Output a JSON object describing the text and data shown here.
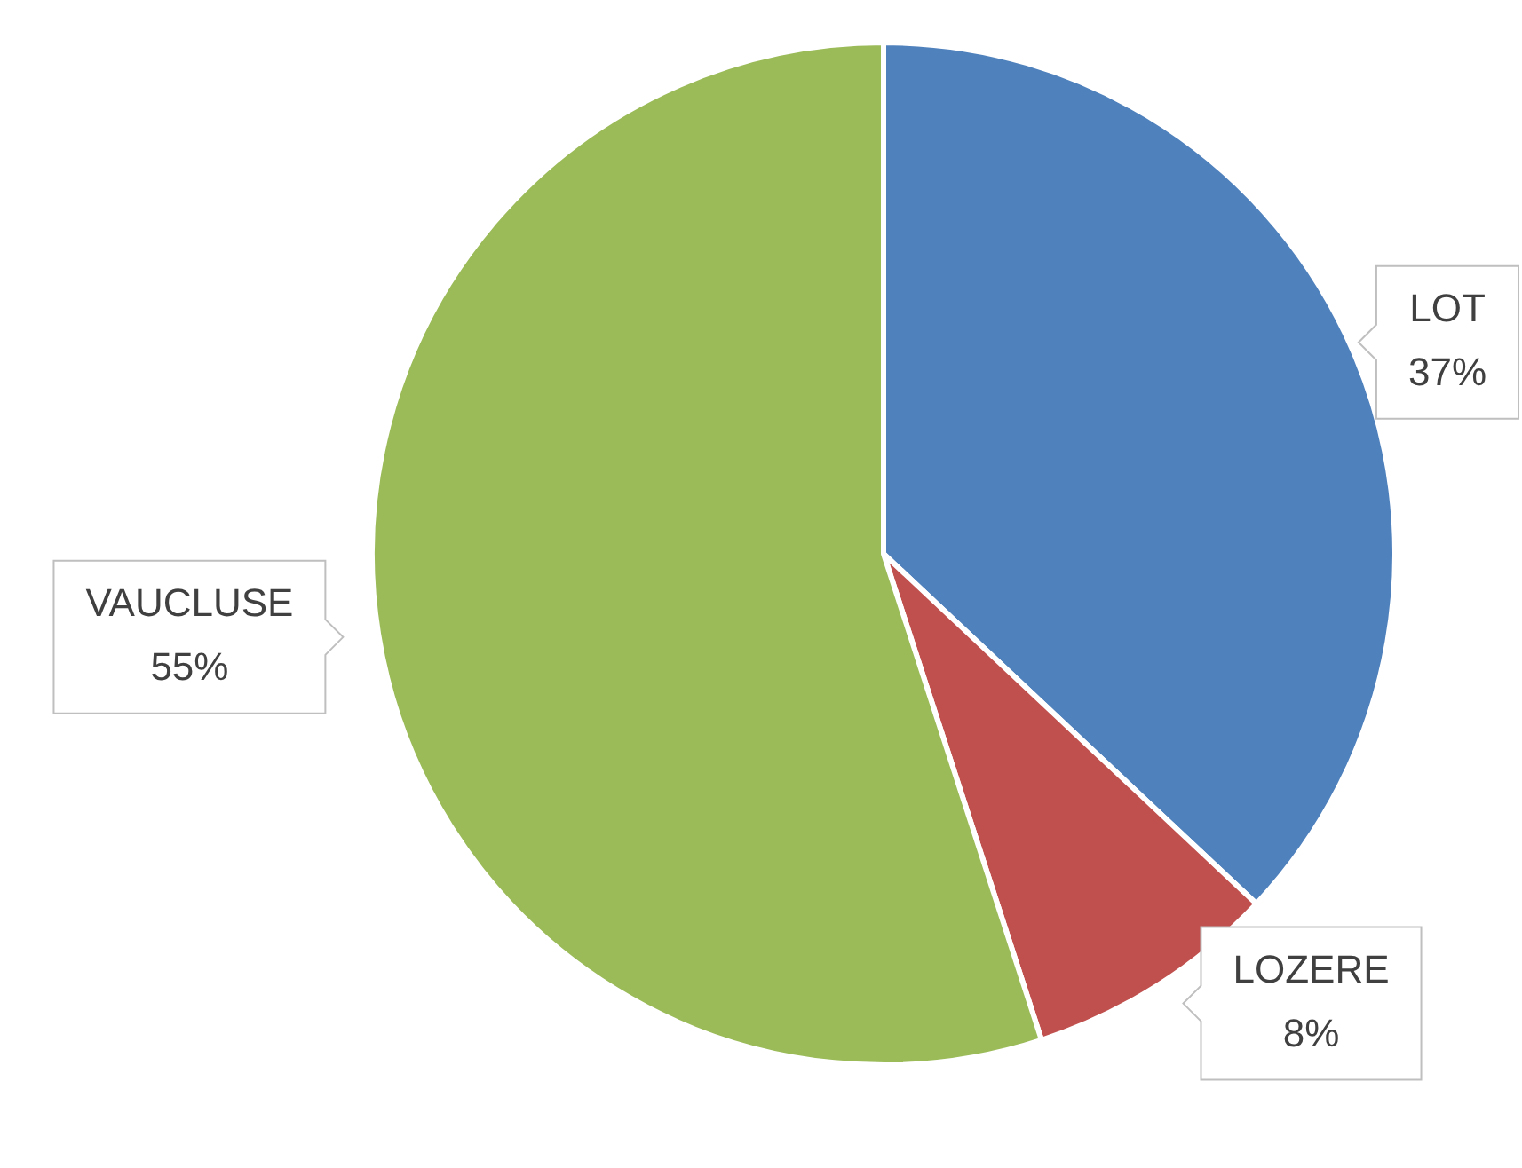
{
  "chart_data": {
    "type": "pie",
    "categories": [
      "LOT",
      "LOZERE",
      "VAUCLUSE"
    ],
    "values": [
      37,
      8,
      55
    ],
    "colors": [
      "#4f81bd",
      "#c0504d",
      "#9bbb59"
    ],
    "value_labels": [
      "37%",
      "8%",
      "55%"
    ],
    "legend": false
  }
}
